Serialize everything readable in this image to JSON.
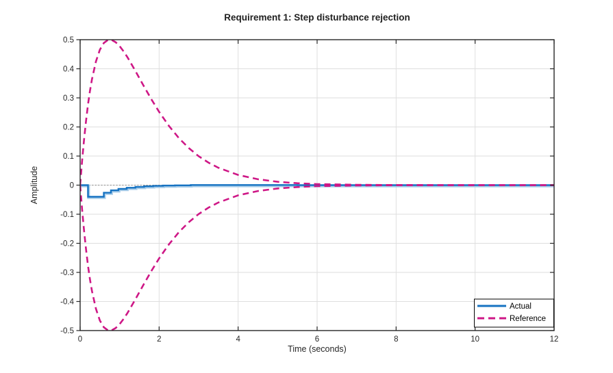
{
  "chart_data": {
    "type": "line",
    "title": "Requirement 1: Step disturbance rejection",
    "xlabel": "Time (seconds)",
    "ylabel": "Amplitude",
    "xlim": [
      0,
      12
    ],
    "ylim": [
      -0.5,
      0.5
    ],
    "grid": true,
    "zero_line": true,
    "xticks": {
      "values": [
        0,
        2,
        4,
        6,
        8,
        10,
        12
      ],
      "labels": [
        "0",
        "2",
        "4",
        "6",
        "8",
        "10",
        "12"
      ]
    },
    "yticks": {
      "values": [
        0.5,
        0.4,
        0.3,
        0.2,
        0.1,
        0,
        -0.1,
        -0.2,
        -0.3,
        -0.4,
        -0.5
      ],
      "labels": [
        "0.5",
        "0.4",
        "0.3",
        "0.2",
        "0.1",
        "0",
        "-0.1",
        "-0.2",
        "-0.3",
        "-0.4",
        "-0.5"
      ]
    },
    "colors": {
      "actual": "#1673C2",
      "actual_halo": "#A9CDE9",
      "reference": "#CE1786",
      "grid": "#DEDEDE",
      "axes": "#262626",
      "zero_line": "#777777",
      "text": "#262626",
      "title": "#1F1F1F",
      "legend_border": "#000000",
      "background": "#FFFFFF"
    },
    "legend": {
      "position": "southeast",
      "entries": [
        {
          "label": "Actual",
          "style": "solid"
        },
        {
          "label": "Reference",
          "style": "dashed"
        }
      ]
    },
    "series": [
      {
        "name": "Actual",
        "mode": "steps",
        "points": [
          [
            0,
            0
          ],
          [
            0.2,
            -0.04
          ],
          [
            0.6,
            -0.026
          ],
          [
            0.78,
            -0.018
          ],
          [
            0.97,
            -0.013
          ],
          [
            1.18,
            -0.009
          ],
          [
            1.4,
            -0.006
          ],
          [
            1.62,
            -0.004
          ],
          [
            1.85,
            -0.0025
          ],
          [
            2.1,
            -0.0015
          ],
          [
            2.4,
            -0.0008
          ],
          [
            2.8,
            0.0005
          ],
          [
            5.5,
            0
          ],
          [
            12,
            0
          ]
        ]
      },
      {
        "name": "Reference (upper bound)",
        "mode": "line",
        "points": [
          [
            0,
            0
          ],
          [
            0.05,
            0.0848
          ],
          [
            0.1,
            0.1587
          ],
          [
            0.15,
            0.2226
          ],
          [
            0.2,
            0.2777
          ],
          [
            0.25,
            0.3247
          ],
          [
            0.3,
            0.3645
          ],
          [
            0.4,
            0.4253
          ],
          [
            0.5,
            0.4653
          ],
          [
            0.6,
            0.4887
          ],
          [
            0.7,
            0.4989
          ],
          [
            0.75,
            0.5
          ],
          [
            0.8,
            0.499
          ],
          [
            0.9,
            0.4913
          ],
          [
            1,
            0.4778
          ],
          [
            1.1,
            0.46
          ],
          [
            1.2,
            0.4392
          ],
          [
            1.4,
            0.3924
          ],
          [
            1.6,
            0.3434
          ],
          [
            1.8,
            0.2959
          ],
          [
            2,
            0.2519
          ],
          [
            2.25,
            0.203
          ],
          [
            2.5,
            0.1617
          ],
          [
            2.75,
            0.1275
          ],
          [
            3,
            0.0996
          ],
          [
            3.25,
            0.0773
          ],
          [
            3.5,
            0.0597
          ],
          [
            4,
            0.035
          ],
          [
            4.5,
            0.0202
          ],
          [
            5,
            0.0115
          ],
          [
            5.5,
            0.0065
          ],
          [
            6,
            0.0036
          ],
          [
            7,
            0.0011
          ],
          [
            8,
            0.0003
          ],
          [
            9,
            0.0001
          ],
          [
            10,
            0
          ],
          [
            11,
            0
          ],
          [
            12,
            0
          ]
        ]
      },
      {
        "name": "Reference (lower bound)",
        "mode": "line",
        "points": [
          [
            0,
            0
          ],
          [
            0.05,
            -0.0848
          ],
          [
            0.1,
            -0.1587
          ],
          [
            0.15,
            -0.2226
          ],
          [
            0.2,
            -0.2777
          ],
          [
            0.25,
            -0.3247
          ],
          [
            0.3,
            -0.3645
          ],
          [
            0.4,
            -0.4253
          ],
          [
            0.5,
            -0.4653
          ],
          [
            0.6,
            -0.4887
          ],
          [
            0.7,
            -0.4989
          ],
          [
            0.75,
            -0.5
          ],
          [
            0.8,
            -0.499
          ],
          [
            0.9,
            -0.4913
          ],
          [
            1,
            -0.4778
          ],
          [
            1.1,
            -0.46
          ],
          [
            1.2,
            -0.4392
          ],
          [
            1.4,
            -0.3924
          ],
          [
            1.6,
            -0.3434
          ],
          [
            1.8,
            -0.2959
          ],
          [
            2,
            -0.2519
          ],
          [
            2.25,
            -0.203
          ],
          [
            2.5,
            -0.1617
          ],
          [
            2.75,
            -0.1275
          ],
          [
            3,
            -0.0996
          ],
          [
            3.25,
            -0.0773
          ],
          [
            3.5,
            -0.0597
          ],
          [
            4,
            -0.035
          ],
          [
            4.5,
            -0.0202
          ],
          [
            5,
            -0.0115
          ],
          [
            5.5,
            -0.0065
          ],
          [
            6,
            -0.0036
          ],
          [
            7,
            -0.0011
          ],
          [
            8,
            -0.0003
          ],
          [
            9,
            -0.0001
          ],
          [
            10,
            0
          ],
          [
            11,
            0
          ],
          [
            12,
            0
          ]
        ]
      }
    ]
  }
}
